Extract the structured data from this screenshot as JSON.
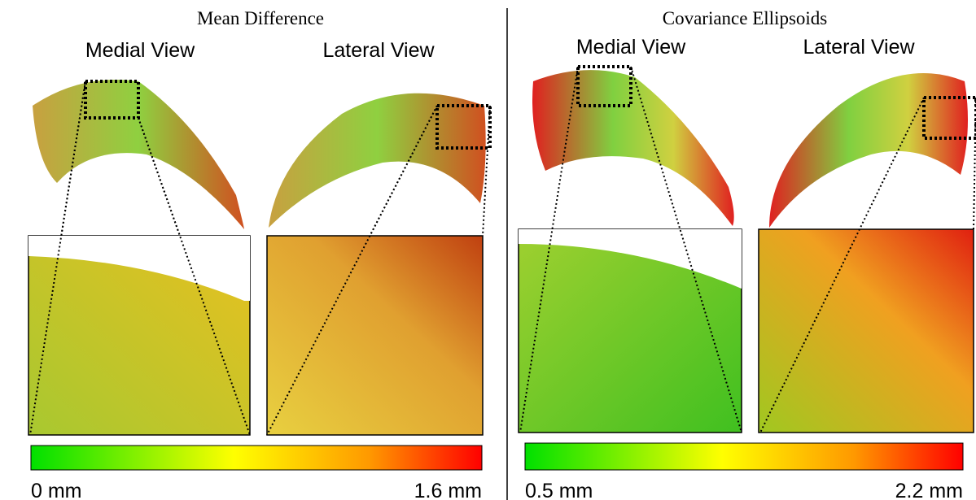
{
  "panels": [
    {
      "title": "Mean Difference",
      "views": [
        "Medial View",
        "Lateral View"
      ],
      "scale": {
        "min_label": "0 mm",
        "max_label": "1.6 mm"
      }
    },
    {
      "title": "Covariance Ellipsoids",
      "views": [
        "Medial View",
        "Lateral View"
      ],
      "scale": {
        "min_label": "0.5 mm",
        "max_label": "2.2 mm"
      }
    }
  ]
}
